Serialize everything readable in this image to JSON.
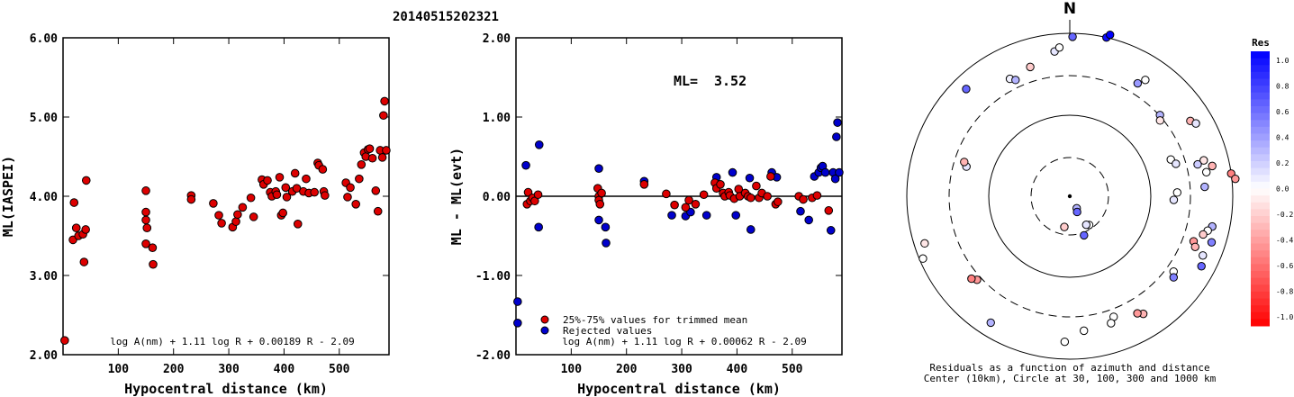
{
  "page_title": "20140515202321",
  "colors": {
    "retained": "#dd0000",
    "rejected": "#0000cc",
    "outline": "#000000"
  },
  "chart_data": [
    {
      "type": "scatter",
      "name": "ml-vs-distance",
      "title": "",
      "xlabel": "Hypocentral distance (km)",
      "ylabel": "ML(IASPEI)",
      "xlim": [
        0,
        590
      ],
      "ylim": [
        2.0,
        6.0
      ],
      "xticks": [
        "100",
        "200",
        "300",
        "400",
        "500"
      ],
      "xtick_values": [
        100,
        200,
        300,
        400,
        500
      ],
      "yticks": [
        "2.00",
        "3.00",
        "4.00",
        "5.00",
        "6.00"
      ],
      "ytick_values": [
        2,
        3,
        4,
        5,
        6
      ],
      "formula": "log A(nm) + 1.11 log R + 0.00189 R - 2.09",
      "points": [
        [
          3,
          2.18
        ],
        [
          20,
          3.92
        ],
        [
          18,
          3.45
        ],
        [
          24,
          3.6
        ],
        [
          28,
          3.5
        ],
        [
          36,
          3.52
        ],
        [
          38,
          3.17
        ],
        [
          42,
          4.2
        ],
        [
          41,
          3.58
        ],
        [
          150,
          4.07
        ],
        [
          150,
          3.8
        ],
        [
          150,
          3.7
        ],
        [
          152,
          3.6
        ],
        [
          150,
          3.4
        ],
        [
          162,
          3.35
        ],
        [
          163,
          3.14
        ],
        [
          232,
          4.01
        ],
        [
          232,
          3.96
        ],
        [
          272,
          3.91
        ],
        [
          282,
          3.76
        ],
        [
          287,
          3.66
        ],
        [
          307,
          3.61
        ],
        [
          313,
          3.68
        ],
        [
          316,
          3.77
        ],
        [
          325,
          3.86
        ],
        [
          340,
          3.98
        ],
        [
          345,
          3.74
        ],
        [
          360,
          4.21
        ],
        [
          363,
          4.15
        ],
        [
          370,
          4.2
        ],
        [
          375,
          4.05
        ],
        [
          378,
          4.0
        ],
        [
          385,
          4.06
        ],
        [
          387,
          4.02
        ],
        [
          392,
          4.24
        ],
        [
          395,
          3.76
        ],
        [
          398,
          3.79
        ],
        [
          403,
          4.11
        ],
        [
          405,
          3.99
        ],
        [
          415,
          4.06
        ],
        [
          420,
          4.29
        ],
        [
          423,
          4.1
        ],
        [
          425,
          3.65
        ],
        [
          435,
          4.06
        ],
        [
          440,
          4.22
        ],
        [
          445,
          4.04
        ],
        [
          455,
          4.05
        ],
        [
          461,
          4.42
        ],
        [
          463,
          4.39
        ],
        [
          470,
          4.34
        ],
        [
          472,
          4.06
        ],
        [
          474,
          4.01
        ],
        [
          512,
          4.17
        ],
        [
          515,
          3.99
        ],
        [
          520,
          4.11
        ],
        [
          530,
          3.9
        ],
        [
          536,
          4.22
        ],
        [
          540,
          4.4
        ],
        [
          545,
          4.55
        ],
        [
          548,
          4.5
        ],
        [
          552,
          4.59
        ],
        [
          555,
          4.6
        ],
        [
          560,
          4.48
        ],
        [
          566,
          4.07
        ],
        [
          570,
          3.81
        ],
        [
          574,
          4.58
        ],
        [
          578,
          4.49
        ],
        [
          580,
          5.02
        ],
        [
          582,
          5.2
        ],
        [
          585,
          4.58
        ]
      ]
    },
    {
      "type": "scatter",
      "name": "residual-vs-distance",
      "title": "",
      "xlabel": "Hypocentral distance (km)",
      "ylabel": "ML - ML(evt)",
      "xlim": [
        0,
        590
      ],
      "ylim": [
        -2.0,
        2.0
      ],
      "xticks": [
        "100",
        "200",
        "300",
        "400",
        "500"
      ],
      "xtick_values": [
        100,
        200,
        300,
        400,
        500
      ],
      "yticks": [
        "-2.00",
        "-1.00",
        "0.00",
        "1.00",
        "2.00"
      ],
      "ytick_values": [
        -2,
        -1,
        0,
        1,
        2
      ],
      "ml_label": "ML=",
      "ml_value": "3.52",
      "legend": [
        "25%-75% values for trimmed mean",
        "Rejected values"
      ],
      "formula": "log A(nm) + 1.11 log R + 0.00062 R - 2.09",
      "retained": [
        [
          20,
          -0.1
        ],
        [
          22,
          0.05
        ],
        [
          26,
          -0.06
        ],
        [
          30,
          -0.02
        ],
        [
          34,
          -0.06
        ],
        [
          40,
          0.02
        ],
        [
          148,
          0.1
        ],
        [
          150,
          0.0
        ],
        [
          150,
          -0.05
        ],
        [
          152,
          -0.1
        ],
        [
          155,
          0.04
        ],
        [
          232,
          0.15
        ],
        [
          272,
          0.03
        ],
        [
          287,
          -0.11
        ],
        [
          307,
          -0.14
        ],
        [
          313,
          -0.05
        ],
        [
          325,
          -0.1
        ],
        [
          340,
          0.02
        ],
        [
          360,
          0.17
        ],
        [
          363,
          0.1
        ],
        [
          370,
          0.15
        ],
        [
          375,
          0.04
        ],
        [
          378,
          0.0
        ],
        [
          385,
          0.05
        ],
        [
          387,
          0.01
        ],
        [
          395,
          -0.03
        ],
        [
          403,
          0.09
        ],
        [
          405,
          0.0
        ],
        [
          415,
          0.04
        ],
        [
          420,
          0.0
        ],
        [
          425,
          -0.02
        ],
        [
          435,
          0.13
        ],
        [
          440,
          -0.02
        ],
        [
          445,
          0.04
        ],
        [
          455,
          0.0
        ],
        [
          461,
          0.25
        ],
        [
          470,
          -0.1
        ],
        [
          474,
          -0.07
        ],
        [
          512,
          0.0
        ],
        [
          520,
          -0.04
        ],
        [
          536,
          -0.02
        ],
        [
          545,
          0.01
        ],
        [
          566,
          -0.18
        ]
      ],
      "rejected": [
        [
          3,
          -1.33
        ],
        [
          3,
          -1.6
        ],
        [
          18,
          0.39
        ],
        [
          42,
          0.65
        ],
        [
          41,
          -0.39
        ],
        [
          150,
          0.35
        ],
        [
          150,
          -0.3
        ],
        [
          162,
          -0.39
        ],
        [
          163,
          -0.59
        ],
        [
          232,
          0.19
        ],
        [
          282,
          -0.24
        ],
        [
          307,
          -0.25
        ],
        [
          316,
          -0.2
        ],
        [
          345,
          -0.24
        ],
        [
          363,
          0.24
        ],
        [
          392,
          0.3
        ],
        [
          398,
          -0.24
        ],
        [
          423,
          0.23
        ],
        [
          425,
          -0.42
        ],
        [
          463,
          0.3
        ],
        [
          472,
          0.24
        ],
        [
          515,
          -0.19
        ],
        [
          530,
          -0.3
        ],
        [
          540,
          0.25
        ],
        [
          548,
          0.3
        ],
        [
          552,
          0.36
        ],
        [
          555,
          0.38
        ],
        [
          560,
          0.3
        ],
        [
          570,
          -0.43
        ],
        [
          574,
          0.3
        ],
        [
          578,
          0.22
        ],
        [
          580,
          0.75
        ],
        [
          582,
          0.93
        ],
        [
          585,
          0.3
        ]
      ]
    },
    {
      "type": "scatter",
      "name": "azimuth-residual-map",
      "north_label": "N",
      "caption_line1": "Residuals as a function of azimuth and distance",
      "caption_line2": "Center (10km), Circle at 30, 100, 300 and 1000 km",
      "colorbar_title": "Res",
      "colorbar_ticks": [
        "1.0",
        "0.8",
        "0.6",
        "0.4",
        "0.2",
        "0.0",
        "-0.2",
        "-0.4",
        "-0.6",
        "-0.8",
        "-1.0"
      ],
      "colorbar_range": [
        -1.0,
        1.0
      ],
      "stations": [
        {
          "az": 1,
          "d": 460,
          "res": 0.6
        },
        {
          "az": 13,
          "d": 470,
          "res": 0.95
        },
        {
          "az": 14,
          "d": 480,
          "res": 1.0
        },
        {
          "az": 354,
          "d": 420,
          "res": 0.1
        },
        {
          "az": 356,
          "d": 430,
          "res": 0.0
        },
        {
          "az": 333,
          "d": 380,
          "res": 0.05
        },
        {
          "az": 335,
          "d": 370,
          "res": 0.3
        },
        {
          "az": 343,
          "d": 390,
          "res": -0.2
        },
        {
          "az": 316,
          "d": 430,
          "res": 0.6
        },
        {
          "az": 31,
          "d": 380,
          "res": 0.4
        },
        {
          "az": 33,
          "d": 400,
          "res": 0.0
        },
        {
          "az": 48,
          "d": 350,
          "res": 0.3
        },
        {
          "az": 50,
          "d": 340,
          "res": -0.1
        },
        {
          "az": 58,
          "d": 410,
          "res": -0.3
        },
        {
          "az": 60,
          "d": 420,
          "res": 0.1
        },
        {
          "az": 70,
          "d": 310,
          "res": 0.0
        },
        {
          "az": 73,
          "d": 320,
          "res": 0.1
        },
        {
          "az": 75,
          "d": 400,
          "res": -0.1
        },
        {
          "az": 76,
          "d": 380,
          "res": 0.2
        },
        {
          "az": 78,
          "d": 420,
          "res": -0.3
        },
        {
          "az": 80,
          "d": 400,
          "res": 0.0
        },
        {
          "az": 82,
          "d": 470,
          "res": -0.5
        },
        {
          "az": 84,
          "d": 480,
          "res": -0.4
        },
        {
          "az": 86,
          "d": 390,
          "res": 0.3
        },
        {
          "az": 88,
          "d": 310,
          "res": 0.0
        },
        {
          "az": 92,
          "d": 300,
          "res": 0.1
        },
        {
          "az": 102,
          "d": 420,
          "res": 0.3
        },
        {
          "az": 104,
          "d": 410,
          "res": 0.0
        },
        {
          "az": 106,
          "d": 400,
          "res": -0.2
        },
        {
          "az": 108,
          "d": 430,
          "res": 0.5
        },
        {
          "az": 110,
          "d": 380,
          "res": -0.4
        },
        {
          "az": 112,
          "d": 390,
          "res": -0.3
        },
        {
          "az": 114,
          "d": 420,
          "res": 0.1
        },
        {
          "az": 118,
          "d": 430,
          "res": 0.6
        },
        {
          "az": 126,
          "d": 370,
          "res": 0.0
        },
        {
          "az": 128,
          "d": 380,
          "res": 0.5
        },
        {
          "az": 148,
          "d": 400,
          "res": -0.3
        },
        {
          "az": 150,
          "d": 390,
          "res": -0.4
        },
        {
          "az": 160,
          "d": 370,
          "res": 0.0
        },
        {
          "az": 162,
          "d": 385,
          "res": 0.0
        },
        {
          "az": 174,
          "d": 390,
          "res": 0.0
        },
        {
          "az": 182,
          "d": 420,
          "res": 0.0
        },
        {
          "az": 146,
          "d": 100,
          "res": 0.0
        },
        {
          "az": 150,
          "d": 95,
          "res": 0.1
        },
        {
          "az": 160,
          "d": 120,
          "res": 0.6
        },
        {
          "az": 190,
          "d": 90,
          "res": -0.2
        },
        {
          "az": 150,
          "d": 40,
          "res": 0.3
        },
        {
          "az": 155,
          "d": 50,
          "res": 0.6
        },
        {
          "az": 212,
          "d": 430,
          "res": 0.3
        },
        {
          "az": 228,
          "d": 360,
          "res": -0.4
        },
        {
          "az": 230,
          "d": 370,
          "res": -0.5
        },
        {
          "az": 247,
          "d": 460,
          "res": 0.0
        },
        {
          "az": 252,
          "d": 440,
          "res": -0.1
        },
        {
          "az": 286,
          "d": 310,
          "res": 0.1
        },
        {
          "az": 288,
          "d": 320,
          "res": -0.3
        }
      ]
    }
  ]
}
